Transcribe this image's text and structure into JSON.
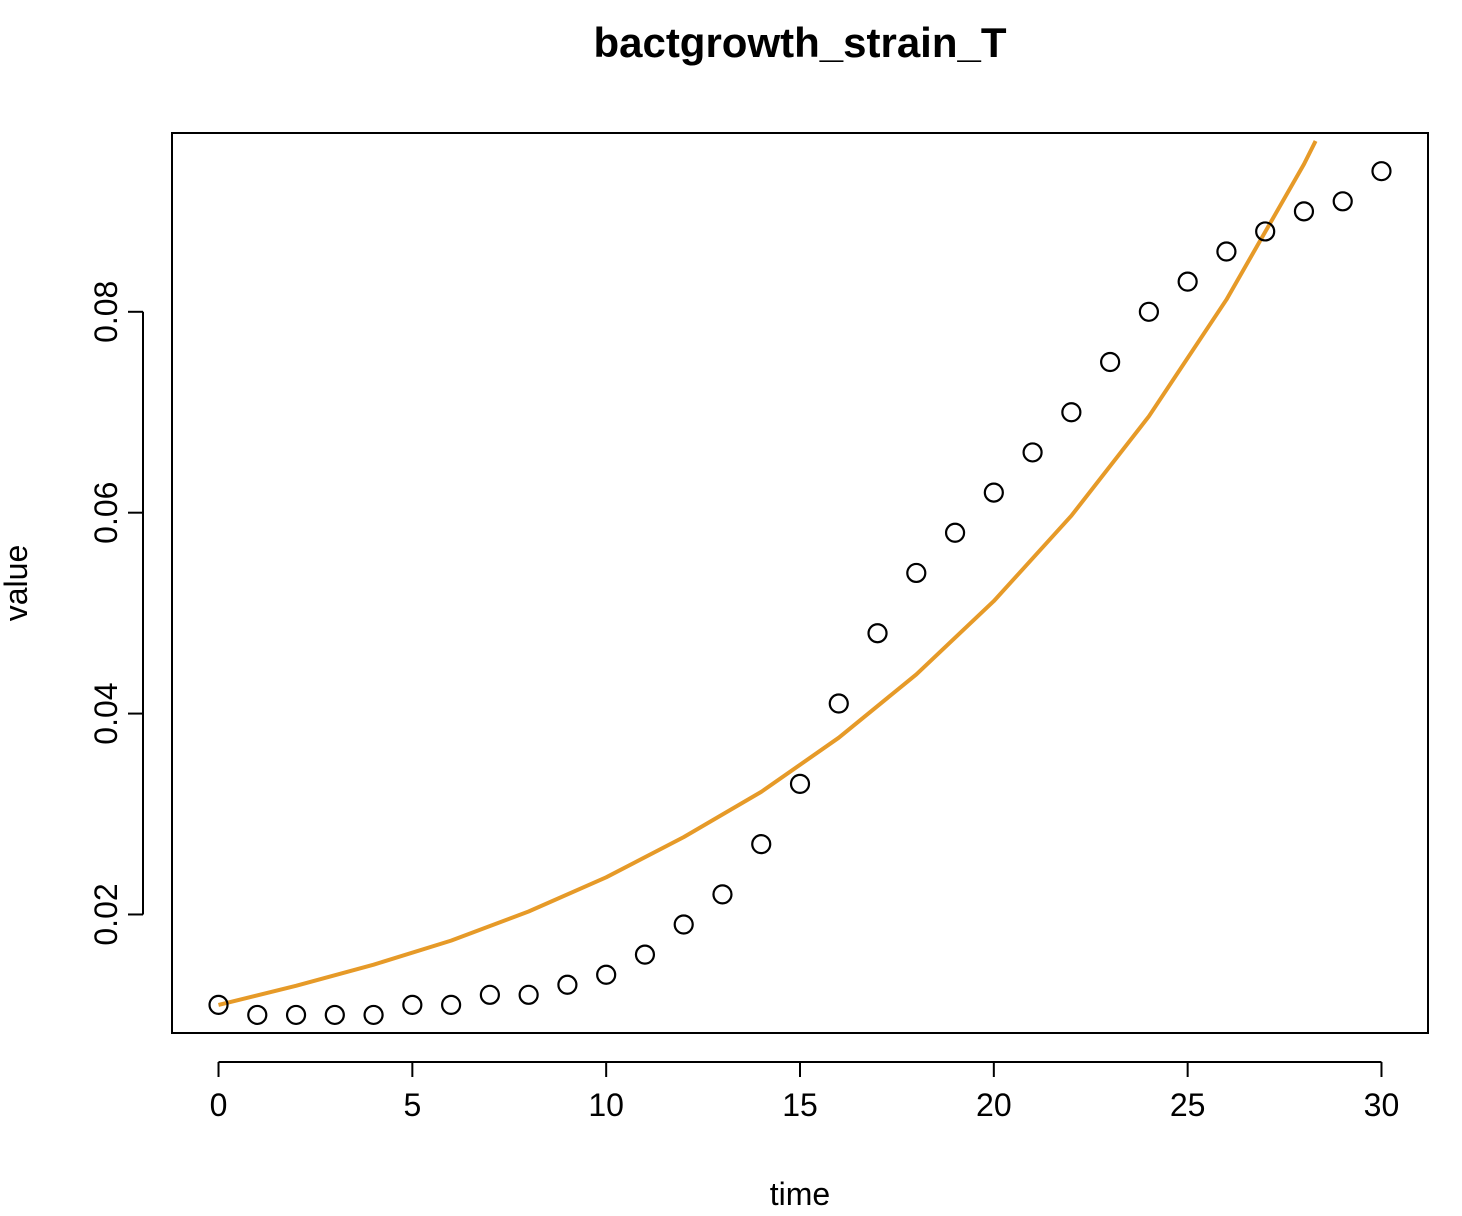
{
  "chart_data": {
    "type": "scatter",
    "title": "bactgrowth_strain_T",
    "xlabel": "time",
    "ylabel": "value",
    "xlim": [
      -1.2,
      31.2
    ],
    "ylim": [
      0.0082,
      0.0978
    ],
    "x_ticks": [
      "0",
      "5",
      "10",
      "15",
      "20",
      "25",
      "30"
    ],
    "y_ticks": [
      "0.02",
      "0.04",
      "0.06",
      "0.08"
    ],
    "grid": false,
    "series": [
      {
        "kind": "points",
        "marker": "open-circle",
        "color": "#000000",
        "x": [
          0,
          1,
          2,
          3,
          4,
          5,
          6,
          7,
          8,
          9,
          10,
          11,
          12,
          13,
          14,
          15,
          16,
          17,
          18,
          19,
          20,
          21,
          22,
          23,
          24,
          25,
          26,
          27,
          28,
          29,
          30
        ],
        "y": [
          0.011,
          0.01,
          0.01,
          0.01,
          0.01,
          0.011,
          0.011,
          0.012,
          0.012,
          0.013,
          0.014,
          0.016,
          0.019,
          0.022,
          0.027,
          0.033,
          0.041,
          0.048,
          0.054,
          0.058,
          0.062,
          0.066,
          0.07,
          0.075,
          0.08,
          0.083,
          0.086,
          0.088,
          0.09,
          0.091,
          0.094
        ]
      },
      {
        "kind": "line",
        "color": "#E69A28",
        "x": [
          0,
          2,
          4,
          6,
          8,
          10,
          12,
          14,
          16,
          18,
          20,
          22,
          24,
          26,
          28,
          28.3
        ],
        "y": [
          0.011,
          0.0129,
          0.015,
          0.0174,
          0.0203,
          0.0237,
          0.0277,
          0.0322,
          0.0376,
          0.0439,
          0.0512,
          0.0597,
          0.0696,
          0.0812,
          0.0947,
          0.097
        ]
      }
    ]
  }
}
